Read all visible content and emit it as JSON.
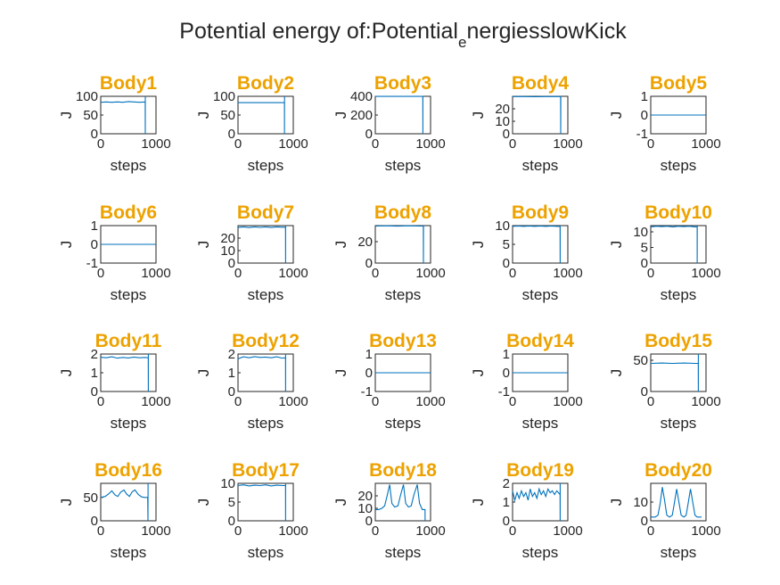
{
  "figure": {
    "title_main": "Potential energy of:Potential",
    "title_sub": "e",
    "title_rest": "nergiesslowKick",
    "title_color": "#EDA200",
    "line_color": "#0072BD"
  },
  "chart_data": [
    {
      "type": "line",
      "title": "Body1",
      "xlabel": "steps",
      "ylabel": "J",
      "xlim": [
        0,
        1000
      ],
      "ylim": [
        0,
        100
      ],
      "yticks": [
        "0",
        "50",
        "100"
      ],
      "xticks": [
        "0",
        "1000"
      ],
      "series": [
        {
          "x": [
            0,
            100,
            200,
            300,
            400,
            500,
            600,
            700,
            800,
            805,
            806,
            807
          ],
          "y": [
            84,
            85,
            84,
            85,
            84,
            86,
            85,
            84,
            85,
            84,
            0,
            100
          ]
        }
      ]
    },
    {
      "type": "line",
      "title": "Body2",
      "xlabel": "steps",
      "ylabel": "J",
      "xlim": [
        0,
        1000
      ],
      "ylim": [
        0,
        100
      ],
      "yticks": [
        "0",
        "50",
        "100"
      ],
      "xticks": [
        "0",
        "1000"
      ],
      "series": [
        {
          "x": [
            0,
            200,
            400,
            600,
            800,
            840,
            841,
            842
          ],
          "y": [
            83,
            83,
            83,
            83,
            83,
            83,
            0,
            100
          ]
        }
      ]
    },
    {
      "type": "line",
      "title": "Body3",
      "xlabel": "steps",
      "ylabel": "J",
      "xlim": [
        0,
        1000
      ],
      "ylim": [
        0,
        400
      ],
      "yticks": [
        "0",
        "200",
        "400"
      ],
      "xticks": [
        "0",
        "1000"
      ],
      "series": [
        {
          "x": [
            0,
            200,
            400,
            600,
            800,
            860,
            861,
            862
          ],
          "y": [
            399,
            399,
            399,
            399,
            399,
            399,
            0,
            400
          ]
        }
      ]
    },
    {
      "type": "line",
      "title": "Body4",
      "xlabel": "steps",
      "ylabel": "J",
      "xlim": [
        0,
        1000
      ],
      "ylim": [
        0,
        30
      ],
      "yticks": [
        "0",
        "10",
        "20"
      ],
      "xticks": [
        "0",
        "1000"
      ],
      "series": [
        {
          "x": [
            0,
            200,
            400,
            600,
            800,
            870,
            871,
            872
          ],
          "y": [
            29.8,
            29.8,
            29.7,
            29.8,
            29.8,
            29.8,
            0,
            30
          ]
        }
      ]
    },
    {
      "type": "line",
      "title": "Body5",
      "xlabel": "steps",
      "ylabel": "J",
      "xlim": [
        0,
        1000
      ],
      "ylim": [
        -1,
        1
      ],
      "yticks": [
        "-1",
        "0",
        "1"
      ],
      "xticks": [
        "0",
        "1000"
      ],
      "series": [
        {
          "x": [
            0,
            1000
          ],
          "y": [
            0,
            0
          ]
        }
      ]
    },
    {
      "type": "line",
      "title": "Body6",
      "xlabel": "steps",
      "ylabel": "J",
      "xlim": [
        0,
        1000
      ],
      "ylim": [
        -1,
        1
      ],
      "yticks": [
        "-1",
        "0",
        "1"
      ],
      "xticks": [
        "0",
        "1000"
      ],
      "series": [
        {
          "x": [
            0,
            1000
          ],
          "y": [
            0,
            0
          ]
        }
      ]
    },
    {
      "type": "line",
      "title": "Body7",
      "xlabel": "steps",
      "ylabel": "J",
      "xlim": [
        0,
        1000
      ],
      "ylim": [
        0,
        30
      ],
      "yticks": [
        "0",
        "10",
        "20"
      ],
      "xticks": [
        "0",
        "1000"
      ],
      "series": [
        {
          "x": [
            0,
            100,
            200,
            300,
            400,
            500,
            600,
            700,
            800,
            860,
            861,
            862
          ],
          "y": [
            28.5,
            29,
            28.4,
            29,
            28.6,
            29,
            28.5,
            29,
            28.7,
            28.8,
            0,
            30
          ]
        }
      ]
    },
    {
      "type": "line",
      "title": "Body8",
      "xlabel": "steps",
      "ylabel": "J",
      "xlim": [
        0,
        1000
      ],
      "ylim": [
        0,
        35
      ],
      "yticks": [
        "0",
        "20"
      ],
      "xticks": [
        "0",
        "1000"
      ],
      "series": [
        {
          "x": [
            0,
            200,
            400,
            600,
            800,
            870,
            871,
            872
          ],
          "y": [
            34.6,
            34.8,
            34.5,
            34.8,
            34.6,
            34.7,
            0,
            35
          ]
        }
      ]
    },
    {
      "type": "line",
      "title": "Body9",
      "xlabel": "steps",
      "ylabel": "J",
      "xlim": [
        0,
        1000
      ],
      "ylim": [
        0,
        10
      ],
      "yticks": [
        "0",
        "5",
        "10"
      ],
      "xticks": [
        "0",
        "1000"
      ],
      "series": [
        {
          "x": [
            0,
            100,
            200,
            300,
            400,
            500,
            600,
            700,
            800,
            860,
            861,
            862
          ],
          "y": [
            9.8,
            9.9,
            9.8,
            9.9,
            9.8,
            9.9,
            9.8,
            9.9,
            9.8,
            9.8,
            0,
            10
          ]
        }
      ]
    },
    {
      "type": "line",
      "title": "Body10",
      "xlabel": "steps",
      "ylabel": "J",
      "xlim": [
        0,
        1000
      ],
      "ylim": [
        0,
        12
      ],
      "yticks": [
        "0",
        "5",
        "10"
      ],
      "xticks": [
        "0",
        "1000"
      ],
      "series": [
        {
          "x": [
            0,
            100,
            200,
            300,
            400,
            500,
            600,
            700,
            800,
            840,
            841,
            842
          ],
          "y": [
            11.6,
            11.8,
            11.7,
            11.8,
            11.6,
            11.8,
            11.7,
            11.8,
            11.6,
            11.7,
            0,
            12
          ]
        }
      ]
    },
    {
      "type": "line",
      "title": "Body11",
      "xlabel": "steps",
      "ylabel": "J",
      "xlim": [
        0,
        1000
      ],
      "ylim": [
        0,
        2
      ],
      "yticks": [
        "0",
        "1",
        "2"
      ],
      "xticks": [
        "0",
        "1000"
      ],
      "series": [
        {
          "x": [
            0,
            100,
            200,
            300,
            400,
            500,
            600,
            700,
            800,
            860,
            861,
            862
          ],
          "y": [
            1.83,
            1.8,
            1.85,
            1.78,
            1.82,
            1.79,
            1.84,
            1.8,
            1.82,
            1.8,
            0,
            2
          ]
        }
      ]
    },
    {
      "type": "line",
      "title": "Body12",
      "xlabel": "steps",
      "ylabel": "J",
      "xlim": [
        0,
        1000
      ],
      "ylim": [
        0,
        2
      ],
      "yticks": [
        "0",
        "1",
        "2"
      ],
      "xticks": [
        "0",
        "1000"
      ],
      "series": [
        {
          "x": [
            0,
            100,
            200,
            300,
            400,
            500,
            600,
            700,
            800,
            860,
            861,
            862
          ],
          "y": [
            1.75,
            1.85,
            1.8,
            1.86,
            1.82,
            1.84,
            1.8,
            1.85,
            1.78,
            1.8,
            0,
            2
          ]
        }
      ]
    },
    {
      "type": "line",
      "title": "Body13",
      "xlabel": "steps",
      "ylabel": "J",
      "xlim": [
        0,
        1000
      ],
      "ylim": [
        -1,
        1
      ],
      "yticks": [
        "-1",
        "0",
        "1"
      ],
      "xticks": [
        "0",
        "1000"
      ],
      "series": [
        {
          "x": [
            0,
            1000
          ],
          "y": [
            0,
            0
          ]
        }
      ]
    },
    {
      "type": "line",
      "title": "Body14",
      "xlabel": "steps",
      "ylabel": "J",
      "xlim": [
        0,
        1000
      ],
      "ylim": [
        -1,
        1
      ],
      "yticks": [
        "-1",
        "0",
        "1"
      ],
      "xticks": [
        "0",
        "1000"
      ],
      "series": [
        {
          "x": [
            0,
            1000
          ],
          "y": [
            0,
            0
          ]
        }
      ]
    },
    {
      "type": "line",
      "title": "Body15",
      "xlabel": "steps",
      "ylabel": "J",
      "xlim": [
        0,
        1000
      ],
      "ylim": [
        0,
        60
      ],
      "yticks": [
        "0",
        "50"
      ],
      "xticks": [
        "0",
        "1000"
      ],
      "series": [
        {
          "x": [
            0,
            200,
            400,
            600,
            800,
            860,
            861,
            862
          ],
          "y": [
            45,
            45.5,
            45,
            45.5,
            45,
            45,
            0,
            60
          ]
        }
      ]
    },
    {
      "type": "line",
      "title": "Body16",
      "xlabel": "steps",
      "ylabel": "J",
      "xlim": [
        0,
        1000
      ],
      "ylim": [
        0,
        80
      ],
      "yticks": [
        "0",
        "50"
      ],
      "xticks": [
        "0",
        "1000"
      ],
      "series": [
        {
          "x": [
            0,
            80,
            150,
            200,
            260,
            310,
            360,
            420,
            470,
            520,
            570,
            620,
            680,
            740,
            790,
            850,
            855,
            856
          ],
          "y": [
            50,
            52,
            58,
            64,
            55,
            52,
            61,
            66,
            57,
            52,
            62,
            66,
            56,
            51,
            50,
            50,
            0,
            80
          ]
        }
      ]
    },
    {
      "type": "line",
      "title": "Body17",
      "xlabel": "steps",
      "ylabel": "J",
      "xlim": [
        0,
        1000
      ],
      "ylim": [
        0,
        10
      ],
      "yticks": [
        "0",
        "5",
        "10"
      ],
      "xticks": [
        "0",
        "1000"
      ],
      "series": [
        {
          "x": [
            0,
            100,
            200,
            300,
            400,
            500,
            600,
            700,
            800,
            860,
            861,
            862
          ],
          "y": [
            9.4,
            9.6,
            9.3,
            9.5,
            9.4,
            9.6,
            9.3,
            9.5,
            9.4,
            9.4,
            0,
            10
          ]
        }
      ]
    },
    {
      "type": "line",
      "title": "Body18",
      "xlabel": "steps",
      "ylabel": "J",
      "xlim": [
        0,
        1000
      ],
      "ylim": [
        0,
        30
      ],
      "yticks": [
        "0",
        "10",
        "20"
      ],
      "xticks": [
        "0",
        "1000"
      ],
      "series": [
        {
          "x": [
            0,
            60,
            120,
            170,
            220,
            260,
            300,
            350,
            410,
            460,
            510,
            550,
            600,
            650,
            700,
            760,
            800,
            850,
            900,
            901
          ],
          "y": [
            9,
            9,
            10,
            12,
            21,
            29,
            14,
            11,
            12,
            21,
            29,
            14,
            11,
            12,
            21,
            29,
            14,
            9,
            9,
            0
          ]
        }
      ]
    },
    {
      "type": "line",
      "title": "Body19",
      "xlabel": "steps",
      "ylabel": "J",
      "xlim": [
        0,
        1000
      ],
      "ylim": [
        0,
        2
      ],
      "yticks": [
        "0",
        "1",
        "2"
      ],
      "xticks": [
        "0",
        "1000"
      ],
      "series": [
        {
          "x": [
            0,
            40,
            80,
            120,
            160,
            200,
            240,
            280,
            320,
            360,
            400,
            440,
            480,
            520,
            560,
            600,
            640,
            680,
            720,
            760,
            800,
            830,
            860,
            861,
            862
          ],
          "y": [
            1.6,
            1.1,
            1.5,
            1.2,
            1.6,
            1.3,
            1.5,
            1.1,
            1.7,
            1.3,
            1.5,
            1.2,
            1.7,
            1.4,
            1.6,
            1.3,
            1.7,
            1.5,
            1.6,
            1.4,
            1.6,
            1.5,
            1.4,
            0,
            2
          ]
        }
      ]
    },
    {
      "type": "line",
      "title": "Body20",
      "xlabel": "steps",
      "ylabel": "J",
      "xlim": [
        0,
        1000
      ],
      "ylim": [
        0,
        20
      ],
      "yticks": [
        "0",
        "10"
      ],
      "xticks": [
        "0",
        "1000"
      ],
      "series": [
        {
          "x": [
            0,
            80,
            130,
            170,
            210,
            250,
            290,
            340,
            390,
            430,
            470,
            510,
            550,
            600,
            640,
            680,
            720,
            760,
            800,
            840,
            880,
            920
          ],
          "y": [
            2,
            2,
            3,
            9,
            18,
            11,
            3,
            2,
            3,
            10,
            17,
            10,
            3,
            2,
            3,
            10,
            17,
            10,
            3,
            2,
            2,
            2
          ]
        }
      ]
    }
  ]
}
